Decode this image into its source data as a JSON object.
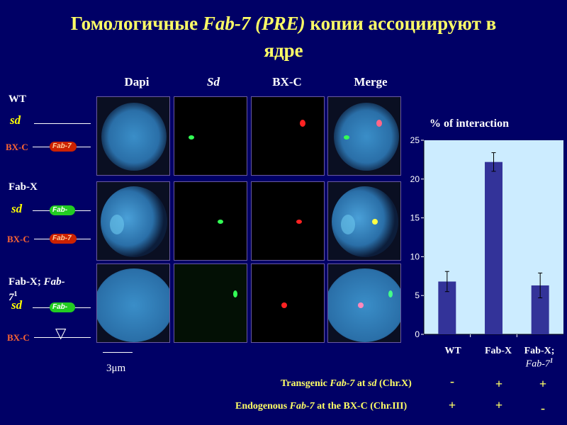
{
  "title": {
    "part1": "Гомологичные ",
    "part2": "Fab-7 (PRE)",
    "part3": " копии ассоциируют в",
    "line2": "ядре"
  },
  "columns": [
    "Dapi",
    "Sd",
    "BX-C",
    "Merge"
  ],
  "rows": [
    {
      "label": "WT",
      "label_italic": ""
    },
    {
      "label": "Fab-X",
      "label_italic": ""
    },
    {
      "label": "Fab-X; ",
      "label_italic": "Fab-",
      "label_line2": "7",
      "label_sup": "1"
    }
  ],
  "labels": {
    "sd": "sd",
    "bxc": "BX-C",
    "fab7": "Fab-7",
    "fab": "Fab-",
    "deletion": "▽"
  },
  "scale": {
    "label": "3μm"
  },
  "chart_data": {
    "type": "bar",
    "title": "% of interaction",
    "categories": [
      "WT",
      "Fab-X",
      "Fab-X;"
    ],
    "category_sub": [
      "",
      "",
      "Fab-7"
    ],
    "category_sup": [
      "",
      "",
      "1"
    ],
    "values": [
      6.8,
      22.2,
      6.3
    ],
    "errors": [
      1.3,
      1.2,
      1.6
    ],
    "ylim": [
      0,
      25
    ],
    "yticks": [
      0,
      5,
      10,
      15,
      20,
      25
    ],
    "bar_color": "#333399",
    "plot_bg": "#ccecff"
  },
  "table": {
    "row1": {
      "text1": "Transgenic  ",
      "italic1": "Fab-7",
      "text2": " at ",
      "italic2": "sd",
      "text3": " (Chr.X)",
      "signs": [
        "-",
        "+",
        "+"
      ]
    },
    "row2": {
      "text1": "Endogenous  ",
      "italic1": "Fab-7",
      "text2": " at the BX-C (Chr.III)",
      "signs": [
        "+",
        "+",
        "-"
      ]
    }
  }
}
